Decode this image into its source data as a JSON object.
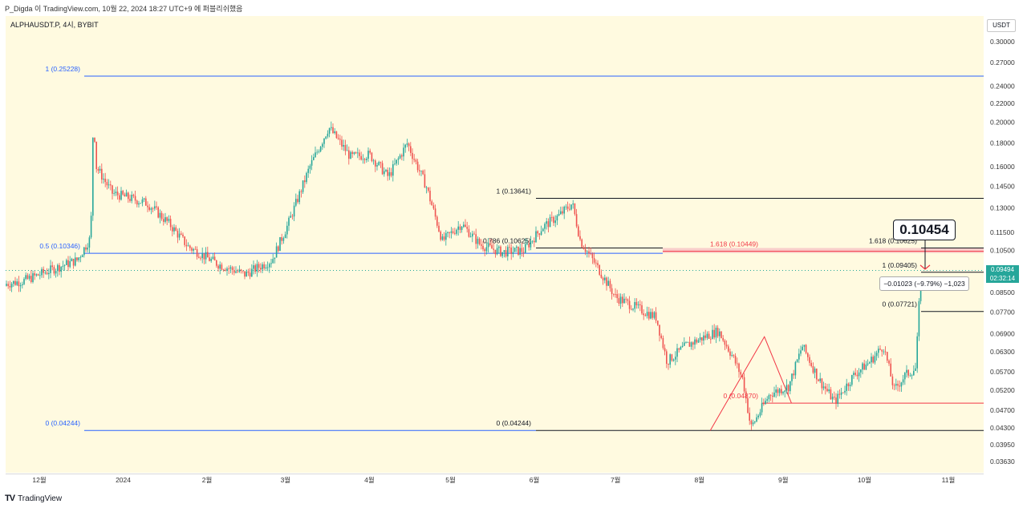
{
  "header": {
    "caption": "P_Digda 이 TradingView.com, 10월 22, 2024 18:27 UTC+9 에 퍼블리쉬했음"
  },
  "symbol": {
    "label": "ALPHAUSDT.P, 4시, BYBIT"
  },
  "unit": "USDT",
  "footer": {
    "brand": "TradingView",
    "mark": "TV"
  },
  "colors": {
    "background": "#fffae0",
    "up": "#26a69a",
    "down": "#ef5350",
    "fib_blue": "#2962ff",
    "fib_black": "#131722",
    "fib_red": "#f23645",
    "zone_fill": "#f8c8c8"
  },
  "chart_data": {
    "type": "candlestick",
    "interval": "4h",
    "y_axis": {
      "ticks": [
        0.3,
        0.27,
        0.24,
        0.22,
        0.2,
        0.18,
        0.16,
        0.145,
        0.13,
        0.115,
        0.105,
        0.095,
        0.085,
        0.077,
        0.069,
        0.063,
        0.057,
        0.052,
        0.047,
        0.043,
        0.0395,
        0.0363
      ],
      "scale": "log"
    },
    "x_axis": {
      "ticks": [
        "12월",
        "2024",
        "2월",
        "3월",
        "4월",
        "5월",
        "6월",
        "7월",
        "8월",
        "9월",
        "10월",
        "11월"
      ]
    },
    "close_path": [
      [
        "2023-11-15",
        0.088
      ],
      [
        "2023-11-25",
        0.09
      ],
      [
        "2023-12-05",
        0.095
      ],
      [
        "2023-12-15",
        0.1
      ],
      [
        "2023-12-20",
        0.112
      ],
      [
        "2023-12-21",
        0.21
      ],
      [
        "2023-12-22",
        0.16
      ],
      [
        "2023-12-28",
        0.14
      ],
      [
        "2024-01-10",
        0.133
      ],
      [
        "2024-01-18",
        0.12
      ],
      [
        "2024-01-25",
        0.107
      ],
      [
        "2024-02-05",
        0.098
      ],
      [
        "2024-02-15",
        0.093
      ],
      [
        "2024-02-25",
        0.1
      ],
      [
        "2024-03-02",
        0.12
      ],
      [
        "2024-03-10",
        0.16
      ],
      [
        "2024-03-17",
        0.195
      ],
      [
        "2024-03-25",
        0.168
      ],
      [
        "2024-04-01",
        0.17
      ],
      [
        "2024-04-08",
        0.152
      ],
      [
        "2024-04-15",
        0.18
      ],
      [
        "2024-04-22",
        0.145
      ],
      [
        "2024-04-28",
        0.11
      ],
      [
        "2024-05-05",
        0.12
      ],
      [
        "2024-05-12",
        0.108
      ],
      [
        "2024-05-20",
        0.104
      ],
      [
        "2024-05-28",
        0.105
      ],
      [
        "2024-06-04",
        0.118
      ],
      [
        "2024-06-10",
        0.125
      ],
      [
        "2024-06-15",
        0.133
      ],
      [
        "2024-06-18",
        0.11
      ],
      [
        "2024-06-25",
        0.095
      ],
      [
        "2024-07-01",
        0.083
      ],
      [
        "2024-07-10",
        0.078
      ],
      [
        "2024-07-16",
        0.075
      ],
      [
        "2024-07-20",
        0.06
      ],
      [
        "2024-07-27",
        0.065
      ],
      [
        "2024-08-03",
        0.068
      ],
      [
        "2024-08-08",
        0.07
      ],
      [
        "2024-08-13",
        0.062
      ],
      [
        "2024-08-17",
        0.055
      ],
      [
        "2024-08-20",
        0.043
      ],
      [
        "2024-08-27",
        0.051
      ],
      [
        "2024-09-03",
        0.053
      ],
      [
        "2024-09-08",
        0.065
      ],
      [
        "2024-09-14",
        0.055
      ],
      [
        "2024-09-20",
        0.049
      ],
      [
        "2024-09-27",
        0.056
      ],
      [
        "2024-10-03",
        0.06
      ],
      [
        "2024-10-08",
        0.065
      ],
      [
        "2024-10-12",
        0.052
      ],
      [
        "2024-10-16",
        0.056
      ],
      [
        "2024-10-20",
        0.058
      ],
      [
        "2024-10-21",
        0.077
      ],
      [
        "2024-10-22",
        0.09494
      ]
    ],
    "annotations": {
      "fib_major": [
        {
          "label": "1 (0.25228)",
          "value": 0.25228
        },
        {
          "label": "0.5 (0.10346)",
          "value": 0.10346
        },
        {
          "label": "0 (0.04244)",
          "value": 0.04244
        }
      ],
      "fib_mid": [
        {
          "label": "1 (0.13641)",
          "value": 0.13641
        },
        {
          "label": "0.786 (0.10625)",
          "value": 0.10625
        },
        {
          "label": "0 (0.04244)",
          "value": 0.04244
        }
      ],
      "fib_red": [
        {
          "label": "1.618 (0.10449)",
          "value": 0.10449
        },
        {
          "label": "0 (0.04870)",
          "value": 0.0487
        }
      ],
      "fib_recent": [
        {
          "label": "1.618 (0.10625)",
          "value": 0.10625
        },
        {
          "label": "1 (0.09405)",
          "value": 0.09405
        },
        {
          "label": "0 (0.07721)",
          "value": 0.07721
        }
      ],
      "callout": "0.10454",
      "measure": "−0.01023 (−9.79%) −1,023",
      "last_price": "0.09494",
      "countdown": "02:32:14"
    }
  }
}
